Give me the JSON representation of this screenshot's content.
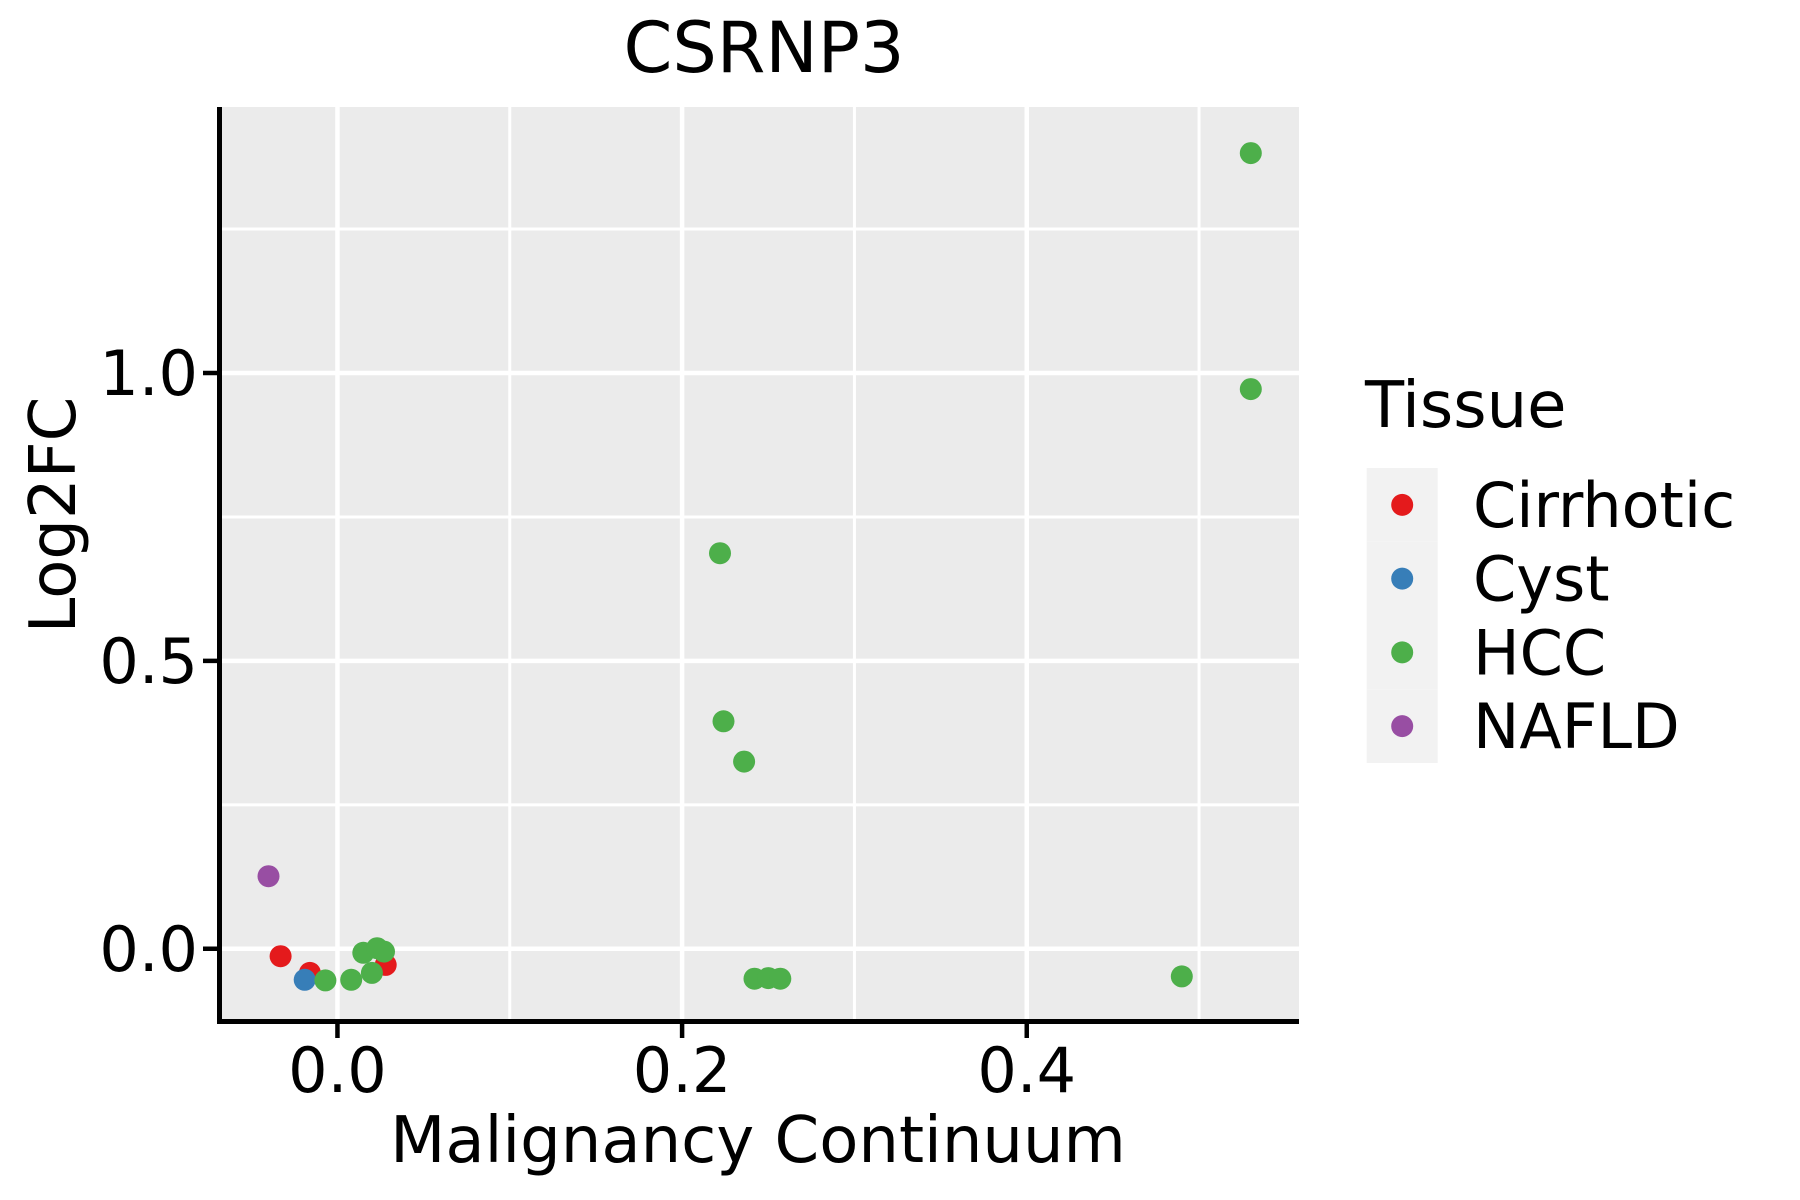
{
  "chart_data": {
    "type": "scatter",
    "title": "CSRNP3",
    "xlabel": "Malignancy Continuum",
    "ylabel": "Log2FC",
    "xlim": [
      -0.067,
      0.558
    ],
    "ylim": [
      -0.122,
      1.462
    ],
    "x_ticks": {
      "values": [
        0.0,
        0.2,
        0.4
      ],
      "labels": [
        "0.0",
        "0.2",
        "0.4"
      ]
    },
    "y_ticks": {
      "values": [
        0.0,
        0.5,
        1.0
      ],
      "labels": [
        "0.0",
        "0.5",
        "1.0"
      ]
    },
    "x_minor_ticks": [
      0.1,
      0.3,
      0.5
    ],
    "y_minor_ticks": [
      0.25,
      0.75,
      1.25
    ],
    "grid": true,
    "legend_position": "right",
    "panel_background": "#EBEBEB",
    "gridline_color": "#FFFFFF",
    "axis_color": "#000000",
    "text_color": "#000000",
    "legend_key_background": "#F2F2F2",
    "point_radius_px": 11,
    "legend": {
      "title": "Tissue",
      "entries": [
        {
          "label": "Cirrhotic",
          "color": "#E41A1C"
        },
        {
          "label": "Cyst",
          "color": "#377EB8"
        },
        {
          "label": "HCC",
          "color": "#4DAF4A"
        },
        {
          "label": "NAFLD",
          "color": "#984EA3"
        }
      ]
    },
    "series": [
      {
        "name": "Cirrhotic",
        "color": "#E41A1C",
        "points": [
          [
            -0.033,
            -0.013
          ],
          [
            -0.016,
            -0.042
          ],
          [
            0.028,
            -0.028
          ]
        ]
      },
      {
        "name": "Cyst",
        "color": "#377EB8",
        "points": [
          [
            -0.019,
            -0.054
          ]
        ]
      },
      {
        "name": "HCC",
        "color": "#4DAF4A",
        "points": [
          [
            -0.007,
            -0.055
          ],
          [
            0.008,
            -0.054
          ],
          [
            0.015,
            -0.007
          ],
          [
            0.023,
            0.001
          ],
          [
            0.027,
            -0.005
          ],
          [
            0.02,
            -0.042
          ],
          [
            0.222,
            0.687
          ],
          [
            0.224,
            0.395
          ],
          [
            0.236,
            0.325
          ],
          [
            0.242,
            -0.052
          ],
          [
            0.25,
            -0.051
          ],
          [
            0.257,
            -0.052
          ],
          [
            0.49,
            -0.048
          ],
          [
            0.53,
            1.382
          ],
          [
            0.53,
            0.972
          ]
        ]
      },
      {
        "name": "NAFLD",
        "color": "#984EA3",
        "points": [
          [
            -0.04,
            0.126
          ]
        ]
      }
    ]
  }
}
